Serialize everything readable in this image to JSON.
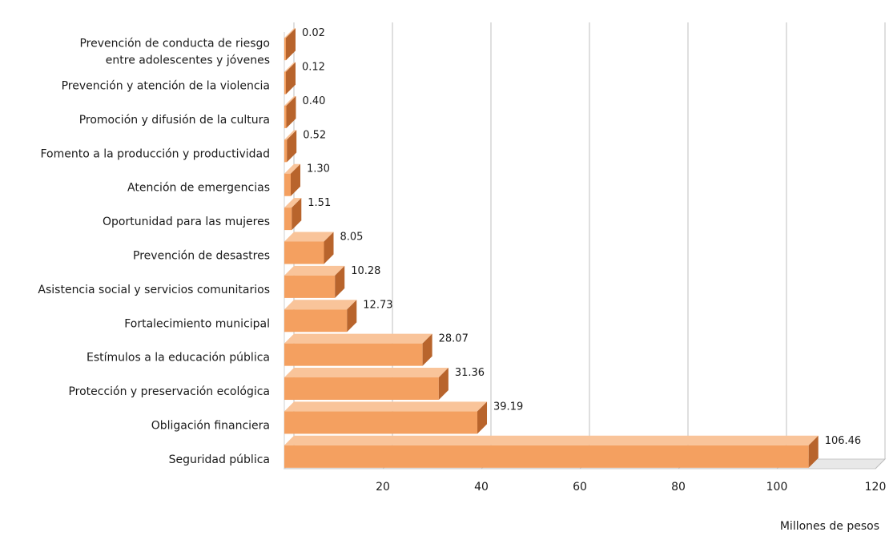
{
  "chart_data": {
    "type": "bar",
    "orientation": "horizontal",
    "categories": [
      "Prevención de conducta de riesgo entre adolescentes y jóvenes",
      "Prevención y atención de la violencia",
      "Promoción y difusión de la cultura",
      "Fomento a la producción y productividad",
      "Atención de emergencias",
      "Oportunidad para las mujeres",
      "Prevención de desastres",
      "Asistencia social y servicios comunitarios",
      "Fortalecimiento municipal",
      "Estímulos a la educación pública",
      "Protección y preservación ecológica",
      "Obligación financiera",
      "Seguridad pública"
    ],
    "category_lines": [
      [
        "Prevención de conducta de riesgo",
        "entre adolescentes y jóvenes"
      ],
      [
        "Prevención y atención de la violencia"
      ],
      [
        "Promoción y difusión de la cultura"
      ],
      [
        "Fomento a la producción y productividad"
      ],
      [
        "Atención de emergencias"
      ],
      [
        "Oportunidad para las mujeres"
      ],
      [
        "Prevención de desastres"
      ],
      [
        "Asistencia social y servicios comunitarios"
      ],
      [
        "Fortalecimiento municipal"
      ],
      [
        "Estímulos a la educación pública"
      ],
      [
        "Protección y preservación ecológica"
      ],
      [
        "Obligación financiera"
      ],
      [
        "Seguridad pública"
      ]
    ],
    "values": [
      0.02,
      0.12,
      0.4,
      0.52,
      1.3,
      1.51,
      8.05,
      10.28,
      12.73,
      28.07,
      31.36,
      39.19,
      106.46
    ],
    "value_labels": [
      "0.02",
      "0.12",
      "0.40",
      "0.52",
      "1.30",
      "1.51",
      "8.05",
      "10.28",
      "12.73",
      "28.07",
      "31.36",
      "39.19",
      "106.46"
    ],
    "xlim": [
      0,
      120
    ],
    "xticks": [
      20,
      40,
      60,
      80,
      100,
      120
    ],
    "xtick_labels": [
      "20",
      "40",
      "60",
      "80",
      "100",
      "120"
    ],
    "xlabel": "Millones de pesos",
    "ylabel": "",
    "title": "",
    "grid": true,
    "style": "3d",
    "bar_color": "#f4a060",
    "bar_top_color": "#f9c49a",
    "bar_side_color": "#b8642c",
    "grid_color": "#bfbfbf",
    "floor_color": "#e8e8e8"
  }
}
